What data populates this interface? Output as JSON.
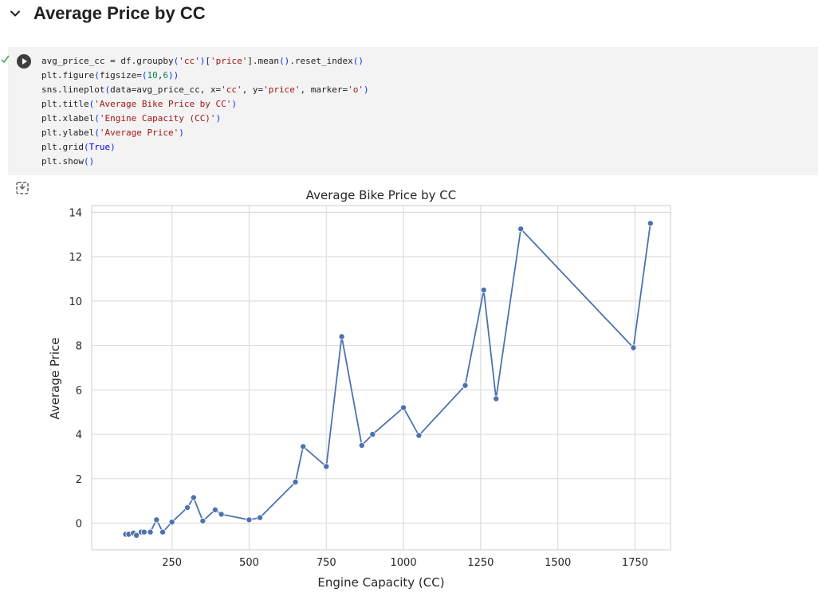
{
  "section": {
    "title": "Average Price by CC",
    "chevron_icon": "chevron-down-icon"
  },
  "code_cell": {
    "run_icon": "play-circle-icon",
    "status_icon": "checkmark-icon",
    "lines": [
      [
        [
          "t",
          "avg_price_cc = df.groupby"
        ],
        [
          "p",
          "("
        ],
        [
          "s",
          "'cc'"
        ],
        [
          "p",
          ")"
        ],
        [
          "t",
          "["
        ],
        [
          "s",
          "'price'"
        ],
        [
          "t",
          "].mean"
        ],
        [
          "p",
          "()"
        ],
        [
          "t",
          ".reset_index"
        ],
        [
          "p",
          "()"
        ]
      ],
      [
        [
          "t",
          "plt.figure"
        ],
        [
          "p",
          "("
        ],
        [
          "t",
          "figsize="
        ],
        [
          "p",
          "("
        ],
        [
          "n",
          "10"
        ],
        [
          "t",
          ","
        ],
        [
          "n",
          "6"
        ],
        [
          "p",
          "))"
        ]
      ],
      [
        [
          "t",
          "sns.lineplot"
        ],
        [
          "p",
          "("
        ],
        [
          "t",
          "data=avg_price_cc, x="
        ],
        [
          "s",
          "'cc'"
        ],
        [
          "t",
          ", y="
        ],
        [
          "s",
          "'price'"
        ],
        [
          "t",
          ", marker="
        ],
        [
          "s",
          "'o'"
        ],
        [
          "p",
          ")"
        ]
      ],
      [
        [
          "t",
          "plt.title"
        ],
        [
          "p",
          "("
        ],
        [
          "s",
          "'Average Bike Price by CC'"
        ],
        [
          "p",
          ")"
        ]
      ],
      [
        [
          "t",
          "plt.xlabel"
        ],
        [
          "p",
          "("
        ],
        [
          "s",
          "'Engine Capacity (CC)'"
        ],
        [
          "p",
          ")"
        ]
      ],
      [
        [
          "t",
          "plt.ylabel"
        ],
        [
          "p",
          "("
        ],
        [
          "s",
          "'Average Price'"
        ],
        [
          "p",
          ")"
        ]
      ],
      [
        [
          "t",
          "plt.grid"
        ],
        [
          "p",
          "("
        ],
        [
          "k",
          "True"
        ],
        [
          "p",
          ")"
        ]
      ],
      [
        [
          "t",
          "plt.show"
        ],
        [
          "p",
          "()"
        ]
      ]
    ]
  },
  "output": {
    "toggle_icon": "output-toggle-icon"
  },
  "chart_data": {
    "type": "line",
    "title": "Average Bike Price by CC",
    "xlabel": "Engine Capacity (CC)",
    "ylabel": "Average Price",
    "xlim": [
      -10,
      1865
    ],
    "ylim": [
      -1.2,
      14.3
    ],
    "xticks": [
      250,
      500,
      750,
      1000,
      1250,
      1500,
      1750
    ],
    "yticks": [
      0,
      2,
      4,
      6,
      8,
      10,
      12,
      14
    ],
    "grid": true,
    "line_color": "#4c72b0",
    "series": [
      {
        "marker": "o",
        "x": [
          100,
          110,
          125,
          135,
          150,
          160,
          180,
          200,
          220,
          250,
          300,
          320,
          350,
          390,
          410,
          500,
          535,
          650,
          675,
          750,
          800,
          865,
          900,
          1000,
          1050,
          1200,
          1260,
          1300,
          1380,
          1745,
          1800
        ],
        "y": [
          -0.5,
          -0.5,
          -0.45,
          -0.55,
          -0.4,
          -0.4,
          -0.4,
          0.15,
          -0.4,
          0.05,
          0.7,
          1.15,
          0.1,
          0.6,
          0.4,
          0.15,
          0.25,
          1.85,
          3.45,
          2.55,
          8.4,
          3.5,
          4.0,
          5.2,
          3.95,
          6.2,
          10.5,
          5.6,
          13.25,
          7.9,
          13.5
        ]
      }
    ]
  }
}
